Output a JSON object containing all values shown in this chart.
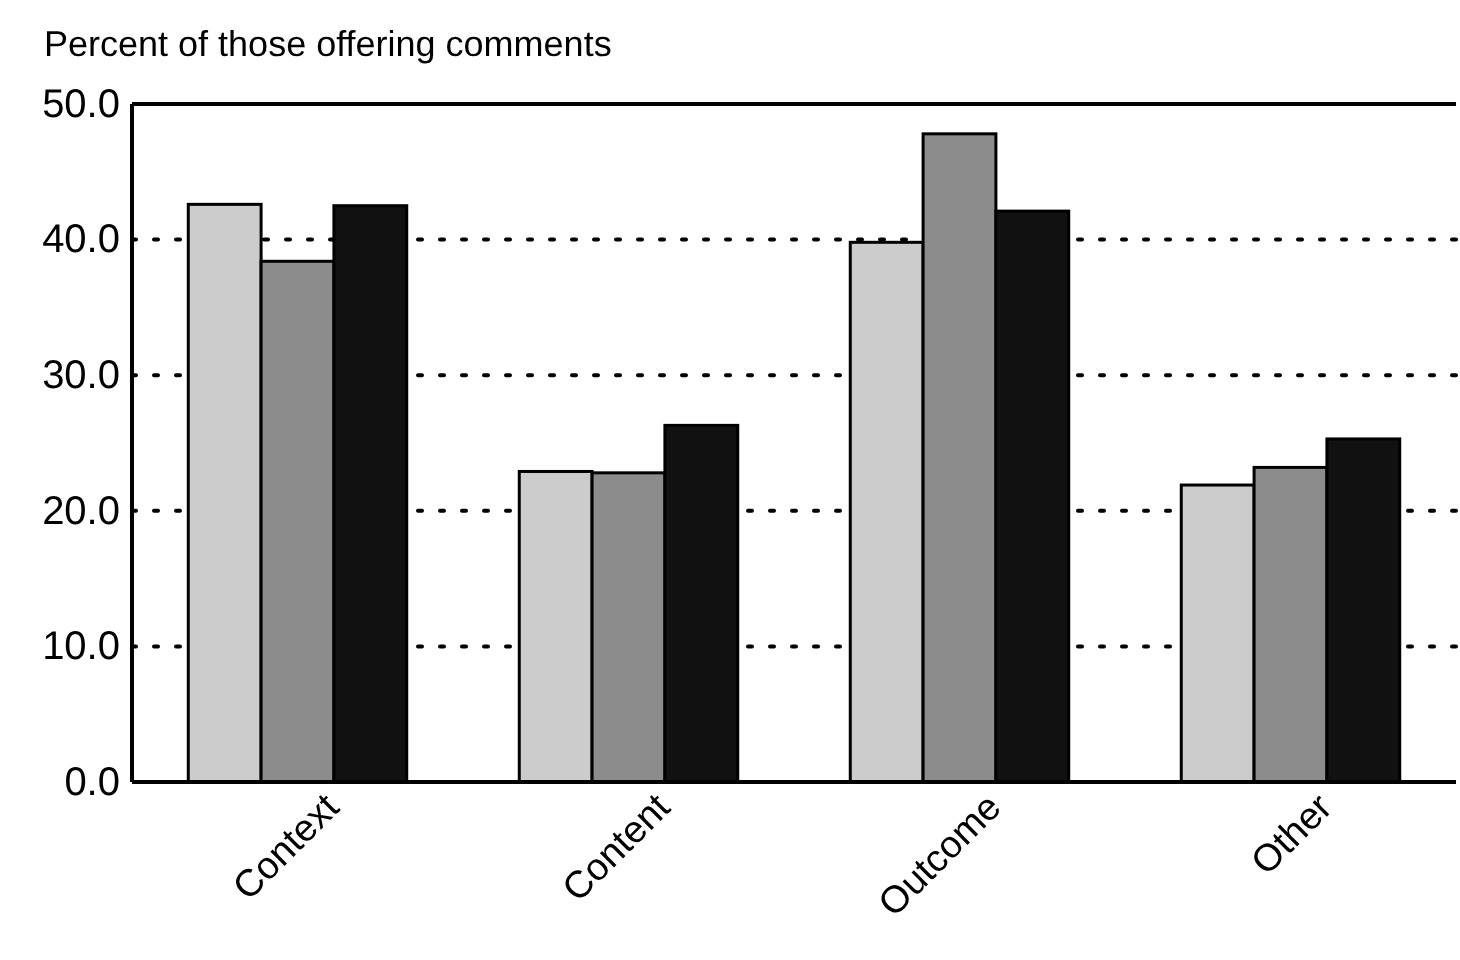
{
  "chart_data": {
    "type": "bar",
    "ylabel": "Percent of those offering comments",
    "categories": [
      "Context",
      "Content",
      "Outcome",
      "Other"
    ],
    "series": [
      {
        "color": "#cccccc",
        "values": [
          42.6,
          22.9,
          39.8,
          21.9
        ]
      },
      {
        "color": "#8c8c8c",
        "values": [
          38.4,
          22.8,
          47.8,
          23.2
        ]
      },
      {
        "color": "#111111",
        "values": [
          42.5,
          26.3,
          42.1,
          25.3
        ]
      }
    ],
    "ylim": [
      0,
      50
    ],
    "yticks": [
      {
        "value": 0,
        "label": "0.0"
      },
      {
        "value": 10,
        "label": "10.0"
      },
      {
        "value": 20,
        "label": "20.0"
      },
      {
        "value": 30,
        "label": "30.0"
      },
      {
        "value": 40,
        "label": "40.0"
      },
      {
        "value": 50,
        "label": "50.0"
      }
    ],
    "grid": "y",
    "line_style": "dotted"
  }
}
